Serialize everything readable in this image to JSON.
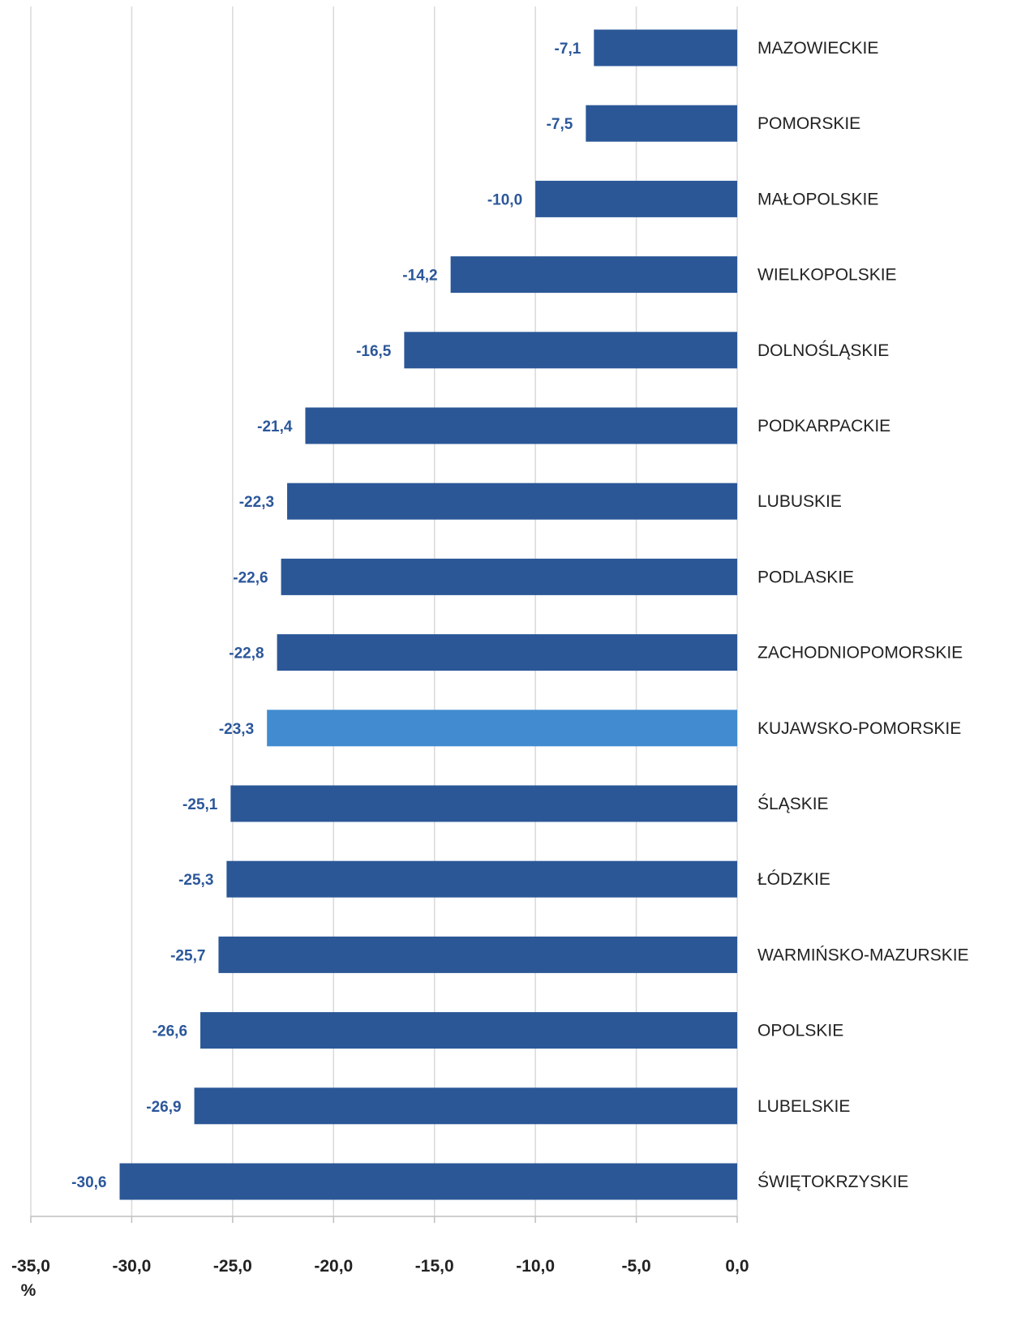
{
  "chart_data": {
    "type": "bar",
    "orientation": "horizontal",
    "categories": [
      "MAZOWIECKIE",
      "POMORSKIE",
      "MAŁOPOLSKIE",
      "WIELKOPOLSKIE",
      "DOLNOŚLĄSKIE",
      "PODKARPACKIE",
      "LUBUSKIE",
      "PODLASKIE",
      "ZACHODNIOPOMORSKIE",
      "KUJAWSKO-POMORSKIE",
      "ŚLĄSKIE",
      "ŁÓDZKIE",
      "WARMIŃSKO-MAZURSKIE",
      "OPOLSKIE",
      "LUBELSKIE",
      "ŚWIĘTOKRZYSKIE"
    ],
    "values": [
      -7.1,
      -7.5,
      -10.0,
      -14.2,
      -16.5,
      -21.4,
      -22.3,
      -22.6,
      -22.8,
      -23.3,
      -25.1,
      -25.3,
      -25.7,
      -26.6,
      -26.9,
      -30.6
    ],
    "value_labels": [
      "-7,1",
      "-7,5",
      "-10,0",
      "-14,2",
      "-16,5",
      "-21,4",
      "-22,3",
      "-22,6",
      "-22,8",
      "-23,3",
      "-25,1",
      "-25,3",
      "-25,7",
      "-26,6",
      "-26,9",
      "-30,6"
    ],
    "highlight_category": "KUJAWSKO-POMORSKIE",
    "xlim": [
      -35,
      0
    ],
    "x_ticks": [
      -35,
      -30,
      -25,
      -20,
      -15,
      -10,
      -5,
      0
    ],
    "x_tick_labels": [
      "-35,0",
      "-30,0",
      "-25,0",
      "-20,0",
      "-15,0",
      "-10,0",
      "-5,0",
      "0,0"
    ],
    "x_unit": "%",
    "grid": true,
    "colors": {
      "bar": "#2b5797",
      "highlight": "#428bd0",
      "label": "#2b579a"
    }
  }
}
